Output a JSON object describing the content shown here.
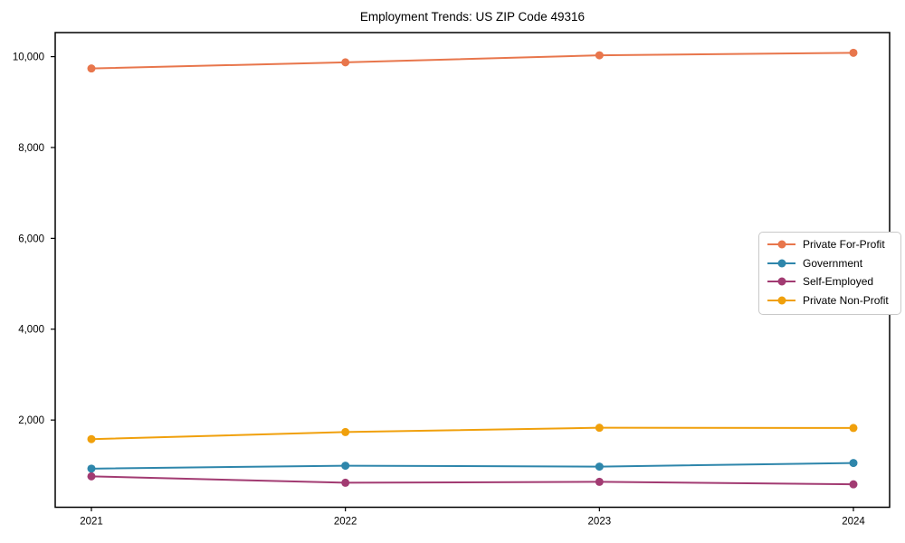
{
  "chart_data": {
    "type": "line",
    "title": "Employment Trends: US ZIP Code 49316",
    "x": [
      "2021",
      "2022",
      "2023",
      "2024"
    ],
    "series": [
      {
        "name": "Private For-Profit",
        "color": "#E8764C",
        "values": [
          9740,
          9875,
          10030,
          10085
        ]
      },
      {
        "name": "Government",
        "color": "#2E86AB",
        "values": [
          930,
          995,
          975,
          1055
        ]
      },
      {
        "name": "Self-Employed",
        "color": "#A23B72",
        "values": [
          760,
          620,
          640,
          585
        ]
      },
      {
        "name": "Private Non-Profit",
        "color": "#F0A00C",
        "values": [
          1580,
          1735,
          1830,
          1825
        ]
      }
    ],
    "xlabel": "",
    "ylabel": "",
    "ylim": [
      80,
      10530
    ],
    "yticks": [
      2000,
      4000,
      6000,
      8000,
      10000
    ],
    "ytick_labels": [
      "2,000",
      "4,000",
      "6,000",
      "8,000",
      "10,000"
    ],
    "xtick_labels": [
      "2021",
      "2022",
      "2023",
      "2024"
    ],
    "grid": false,
    "legend_position": "center-right",
    "marker": "circle",
    "background": "#ffffff",
    "axis_color": "#000000"
  }
}
